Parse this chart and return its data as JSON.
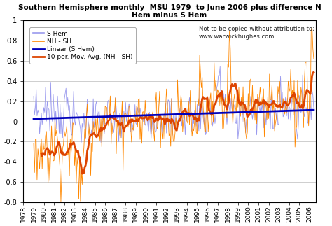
{
  "title_line1": "Southern Hemisphere monthly  MSU 1979  to June 2006 plus difference N",
  "title_line2": "Hem minus S Hem",
  "s_hem_color": "#9999ee",
  "nh_sh_color": "#ff8800",
  "linear_color": "#0000bb",
  "moving_avg_color": "#dd4400",
  "ylim": [
    -0.8,
    1.0
  ],
  "yticks": [
    -0.8,
    -0.6,
    -0.4,
    -0.2,
    0.0,
    0.2,
    0.4,
    0.6,
    0.8,
    1.0
  ],
  "legend_labels": [
    "S Hem",
    "NH - SH",
    "Linear (S Hem)",
    "10 per. Mov. Avg. (NH - SH)"
  ],
  "watermark": "Not to be copied without attribution to;\nwww.warwickhughes.com",
  "start_year": 1979,
  "end_year": 2006,
  "n_months": 330,
  "xlim_left": 1978.0,
  "xlim_right": 2006.6
}
